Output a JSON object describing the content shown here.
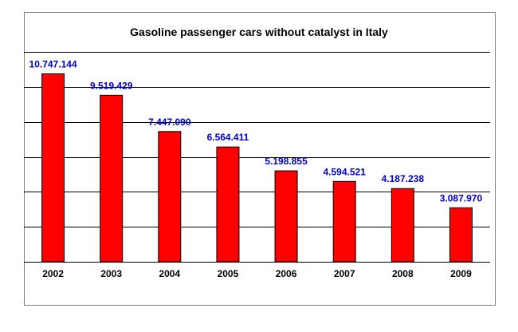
{
  "chart_data": {
    "type": "bar",
    "title": "Gasoline passenger cars without catalyst in Italy",
    "xlabel": "",
    "ylabel": "",
    "categories": [
      "2002",
      "2003",
      "2004",
      "2005",
      "2006",
      "2007",
      "2008",
      "2009"
    ],
    "values": [
      10747144,
      9519429,
      7447090,
      6564411,
      5198855,
      4594521,
      4187238,
      3087970
    ],
    "data_labels": [
      "10.747.144",
      "9.519.429",
      "7.447.090",
      "6.564.411",
      "5.198.855",
      "4.594.521",
      "4.187.238",
      "3.087.970"
    ],
    "ylim": [
      0,
      12000000
    ],
    "ytick_step": 2000000,
    "grid": true,
    "legend": "none",
    "colors": {
      "bar_fill": "#ff0000",
      "bar_stroke": "#000000",
      "data_label": "#0000cc",
      "grid": "#000000",
      "frame_border": "#808080",
      "background": "#ffffff"
    }
  }
}
